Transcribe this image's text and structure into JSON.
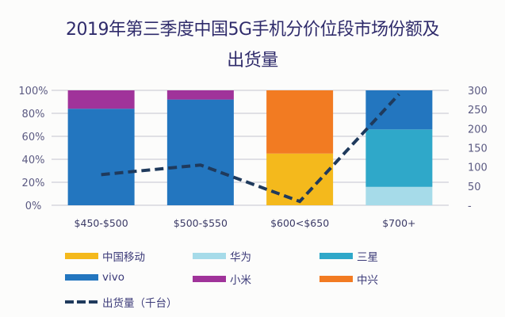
{
  "chart_data": {
    "type": "bar",
    "stacked": true,
    "title": "2019年第三季度中国5G手机分价位段市场份额及",
    "title_line2": "出货量",
    "categories": [
      "$450-$500",
      "$500-$550",
      "$600<$650",
      "$700+"
    ],
    "ylim": [
      0,
      100
    ],
    "y2lim": [
      0,
      300
    ],
    "yticks": [
      "0%",
      "20%",
      "40%",
      "60%",
      "80%",
      "100%"
    ],
    "y2ticks": [
      "-",
      "50",
      "100",
      "150",
      "200",
      "250",
      "300"
    ],
    "grid": true,
    "series": [
      {
        "name": "中国移动",
        "color": "#f4b91c",
        "values": [
          0,
          0,
          45,
          0
        ]
      },
      {
        "name": "华为",
        "color": "#a6dbe9",
        "values": [
          0,
          0,
          0,
          16
        ]
      },
      {
        "name": "三星",
        "color": "#2fa8c9",
        "values": [
          0,
          0,
          0,
          50
        ]
      },
      {
        "name": "vivo",
        "color": "#2376bf",
        "values": [
          84,
          92,
          0,
          34
        ]
      },
      {
        "name": "小米",
        "color": "#a0339a",
        "values": [
          16,
          8,
          0,
          0
        ]
      },
      {
        "name": "中兴",
        "color": "#f27b22",
        "values": [
          0,
          0,
          55,
          0
        ]
      }
    ],
    "line_series": {
      "name": "出货量（千台）",
      "color": "#1f3a5c",
      "axis": "right",
      "values": [
        80,
        105,
        10,
        290
      ]
    },
    "legend": {
      "row1": [
        "中国移动",
        "华为",
        "三星"
      ],
      "row2": [
        "vivo",
        "小米",
        "中兴"
      ],
      "line_label": "出货量（千台）"
    },
    "legend_position": "bottom"
  }
}
